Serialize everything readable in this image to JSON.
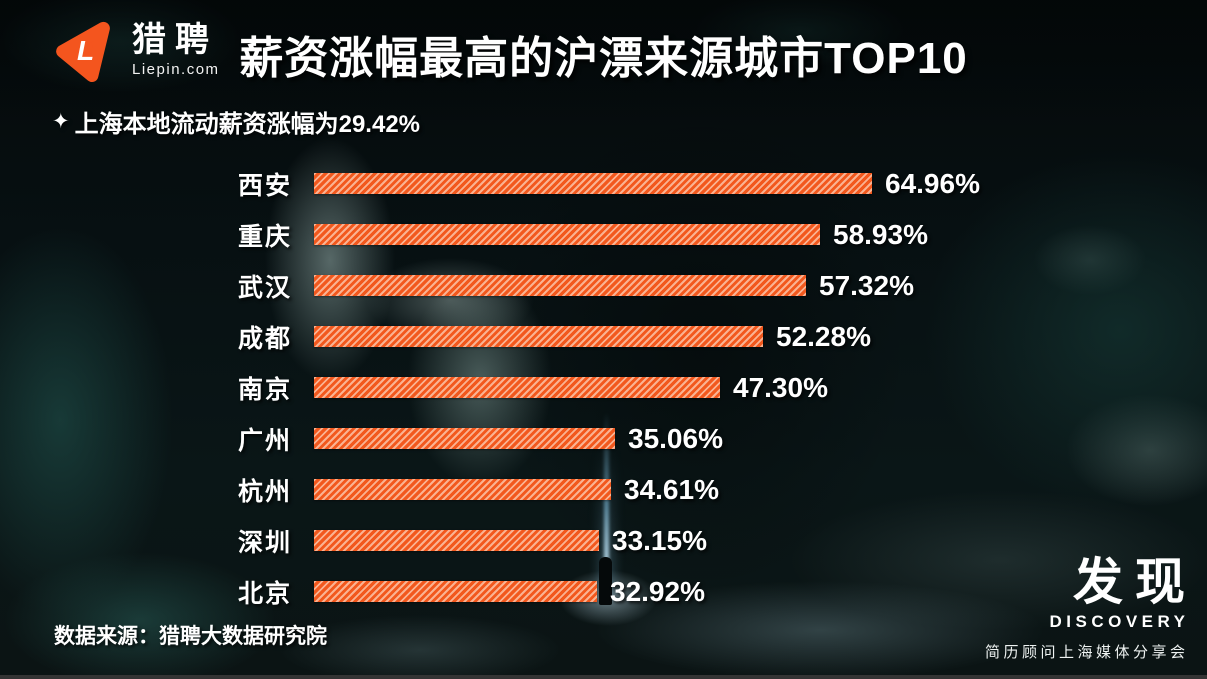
{
  "header": {
    "logo": {
      "icon": "liepin-triangle-icon",
      "letter": "L",
      "brand": "猎聘",
      "domain": "Liepin.com"
    },
    "title": "薪资涨幅最高的沪漂来源城市TOP10"
  },
  "annotation": {
    "icon": "sparkle-icon",
    "glyph": "✦",
    "text": "上海本地流动薪资涨幅为29.42%"
  },
  "chart_data": {
    "type": "bar",
    "orientation": "horizontal",
    "title": "薪资涨幅最高的沪漂来源城市TOP10",
    "annotation": "上海本地流动薪资涨幅为29.42%",
    "categories": [
      "西安",
      "重庆",
      "武汉",
      "成都",
      "南京",
      "广州",
      "杭州",
      "深圳",
      "北京"
    ],
    "values": [
      64.96,
      58.93,
      57.32,
      52.28,
      47.3,
      35.06,
      34.61,
      33.15,
      32.92
    ],
    "value_labels": [
      "64.96%",
      "58.93%",
      "57.32%",
      "52.28%",
      "47.30%",
      "35.06%",
      "34.61%",
      "33.15%",
      "32.92%"
    ],
    "value_format": "percent",
    "xlim": [
      0,
      65
    ],
    "grid": false,
    "legend_position": "none",
    "bar_color": "#f2581d",
    "bar_stripe_color": "#f9c9a4",
    "label_color": "#ffffff"
  },
  "footer": {
    "source": "数据来源：猎聘大数据研究院"
  },
  "brand_footer": {
    "cn": "发现",
    "en": "DISCOVERY",
    "tagline": "简历顾问上海媒体分享会"
  },
  "colors": {
    "accent_orange": "#f2581d",
    "background_dark": "#070f10",
    "text": "#ffffff",
    "bottom_strip": "#343434"
  }
}
